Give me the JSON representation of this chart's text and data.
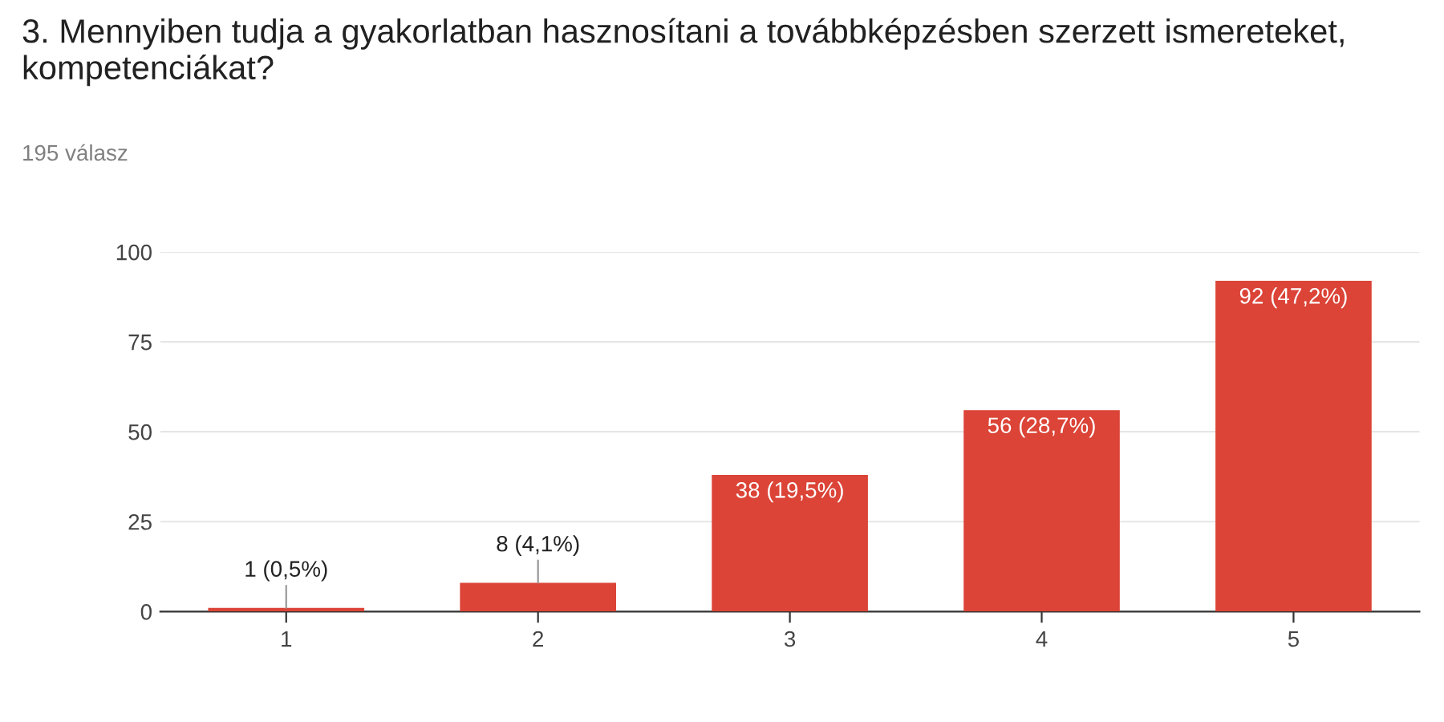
{
  "chart_data": {
    "type": "bar",
    "title": "3. Mennyiben tudja a gyakorlatban hasznosítani a továbbképzésben szerzett ismereteket, kompetenciákat?",
    "subtitle": "195 válasz",
    "categories": [
      "1",
      "2",
      "3",
      "4",
      "5"
    ],
    "values": [
      1,
      8,
      38,
      56,
      92
    ],
    "value_labels": [
      "1 (0,5%)",
      "8 (4,1%)",
      "38 (19,5%)",
      "56 (28,7%)",
      "92 (47,2%)"
    ],
    "color": "#db4437",
    "ylim": [
      0,
      100
    ],
    "yticks": [
      0,
      25,
      50,
      75,
      100
    ],
    "grid": "y"
  }
}
